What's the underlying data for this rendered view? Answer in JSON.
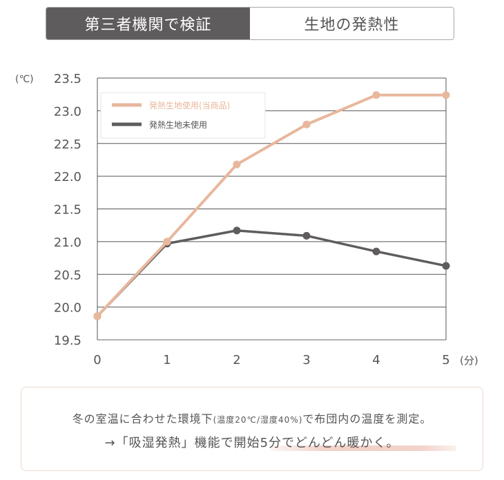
{
  "tabs": [
    {
      "label": "第三者機関で検証",
      "active": true
    },
    {
      "label": "生地の発熱性",
      "active": false
    }
  ],
  "chart_data": {
    "type": "line",
    "y_unit": "(℃)",
    "x_unit": "(分)",
    "x": [
      0,
      1,
      2,
      3,
      4,
      5
    ],
    "x_ticks": [
      "0",
      "1",
      "2",
      "3",
      "4",
      "5"
    ],
    "y_ticks": [
      "19.5",
      "20.0",
      "20.5",
      "21.0",
      "21.5",
      "22.0",
      "22.5",
      "23.0",
      "23.5"
    ],
    "ylim": [
      19.5,
      23.5
    ],
    "grid": true,
    "legend_position": "top-left",
    "series": [
      {
        "name": "発熱生地使用(当商品)",
        "color": "#e8b79c",
        "values": [
          19.86,
          21.0,
          22.18,
          22.79,
          23.24,
          23.24
        ]
      },
      {
        "name": "発熱生地未使用",
        "color": "#5f5c5d",
        "values": [
          19.86,
          20.97,
          21.17,
          21.09,
          20.85,
          20.63
        ]
      }
    ]
  },
  "note": {
    "line1_a": "冬の室温に合わせた環境下",
    "line1_small": "(温度20℃/湿度40%)",
    "line1_b": "で布団内の温度を測定。",
    "line2": "→「吸湿発熱」機能で開始5分でどんどん暖かく。"
  }
}
